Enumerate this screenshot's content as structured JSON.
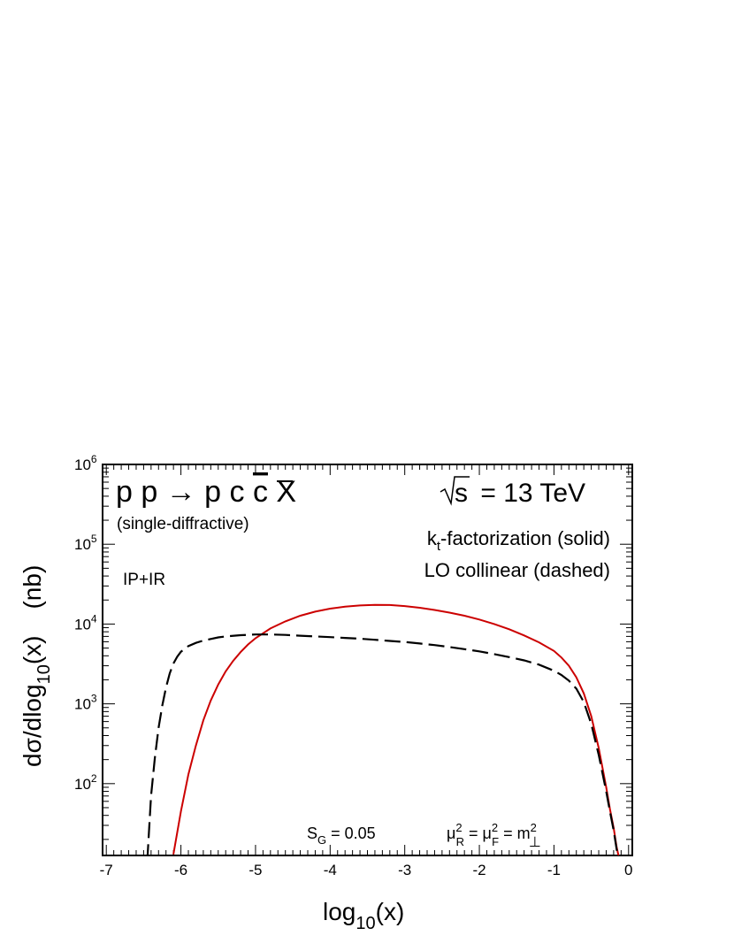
{
  "chart_data": {
    "type": "line",
    "title": "p p → p c c̄ X",
    "title_parts": {
      "main": "p p → p c ",
      "cbar": "c",
      "tail": " X"
    },
    "subtitle": "(single-diffractive)",
    "energy_label": {
      "sqrt": "s",
      "text": "= 13 TeV"
    },
    "component_label": "IP+IR",
    "legend": {
      "solid": {
        "base": "k",
        "sub": "t",
        "rest": "-factorization (solid)"
      },
      "dashed": "LO collinear (dashed)"
    },
    "annotations": {
      "survival": {
        "base": "S",
        "sub": "G",
        "rest": " = 0.05"
      },
      "scale": {
        "mu": "μ",
        "sub_r": "R",
        "sub_f": "F",
        "sup": "2",
        "m": "m",
        "perp": "⊥",
        "eq": " = "
      }
    },
    "xlabel": {
      "base": "log",
      "sub": "10",
      "rest": "(x)"
    },
    "ylabel": {
      "pre": "dσ/dlog",
      "sub": "10",
      "post": "(x)",
      "unit": "(nb)"
    },
    "xlim": [
      -7.05,
      0.05
    ],
    "ylim_log10": [
      1.1,
      6.0
    ],
    "y_scale": "log",
    "x_ticks": [
      "-7",
      "-6",
      "-5",
      "-4",
      "-3",
      "-2",
      "-1",
      "0"
    ],
    "y_ticks": [
      {
        "exp": 2,
        "base": "10",
        "sup": "2"
      },
      {
        "exp": 3,
        "base": "10",
        "sup": "3"
      },
      {
        "exp": 4,
        "base": "10",
        "sup": "4"
      },
      {
        "exp": 5,
        "base": "10",
        "sup": "5"
      },
      {
        "exp": 6,
        "base": "10",
        "sup": "6"
      }
    ],
    "series": [
      {
        "style": "solid",
        "color": "#cc0000",
        "x": [
          -6.1,
          -6.0,
          -5.9,
          -5.8,
          -5.7,
          -5.6,
          -5.5,
          -5.4,
          -5.3,
          -5.2,
          -5.1,
          -5.0,
          -4.8,
          -4.6,
          -4.4,
          -4.2,
          -4.0,
          -3.8,
          -3.6,
          -3.4,
          -3.2,
          -3.0,
          -2.8,
          -2.6,
          -2.4,
          -2.2,
          -2.0,
          -1.8,
          -1.6,
          -1.4,
          -1.2,
          -1.0,
          -0.9,
          -0.8,
          -0.7,
          -0.6,
          -0.5,
          -0.4,
          -0.3,
          -0.25,
          -0.2,
          -0.16,
          -0.13
        ],
        "y": [
          13,
          45,
          130,
          300,
          620,
          1100,
          1750,
          2550,
          3450,
          4450,
          5550,
          6650,
          8800,
          10800,
          12700,
          14300,
          15600,
          16500,
          17100,
          17400,
          17300,
          16800,
          16000,
          15000,
          13900,
          12700,
          11400,
          10000,
          8600,
          7200,
          5900,
          4600,
          3800,
          3000,
          2150,
          1350,
          700,
          280,
          90,
          48,
          28,
          16,
          12
        ]
      },
      {
        "style": "dashed",
        "color": "#000000",
        "x": [
          -6.45,
          -6.4,
          -6.35,
          -6.3,
          -6.25,
          -6.2,
          -6.15,
          -6.1,
          -6.05,
          -6.0,
          -5.9,
          -5.8,
          -5.7,
          -5.6,
          -5.5,
          -5.4,
          -5.2,
          -5.0,
          -4.8,
          -4.6,
          -4.4,
          -4.2,
          -4.0,
          -3.8,
          -3.6,
          -3.4,
          -3.2,
          -3.0,
          -2.8,
          -2.6,
          -2.4,
          -2.2,
          -2.0,
          -1.8,
          -1.6,
          -1.4,
          -1.2,
          -1.0,
          -0.9,
          -0.8,
          -0.7,
          -0.6,
          -0.5,
          -0.4,
          -0.3,
          -0.25,
          -0.2,
          -0.16,
          -0.13
        ],
        "y": [
          11,
          70,
          210,
          500,
          950,
          1600,
          2400,
          3200,
          3900,
          4500,
          5300,
          5800,
          6200,
          6500,
          6800,
          7000,
          7250,
          7400,
          7400,
          7300,
          7150,
          7000,
          6850,
          6700,
          6550,
          6350,
          6150,
          5950,
          5700,
          5450,
          5150,
          4850,
          4550,
          4200,
          3850,
          3500,
          3100,
          2600,
          2300,
          1950,
          1550,
          1050,
          560,
          230,
          80,
          45,
          26,
          15,
          11
        ]
      }
    ]
  }
}
